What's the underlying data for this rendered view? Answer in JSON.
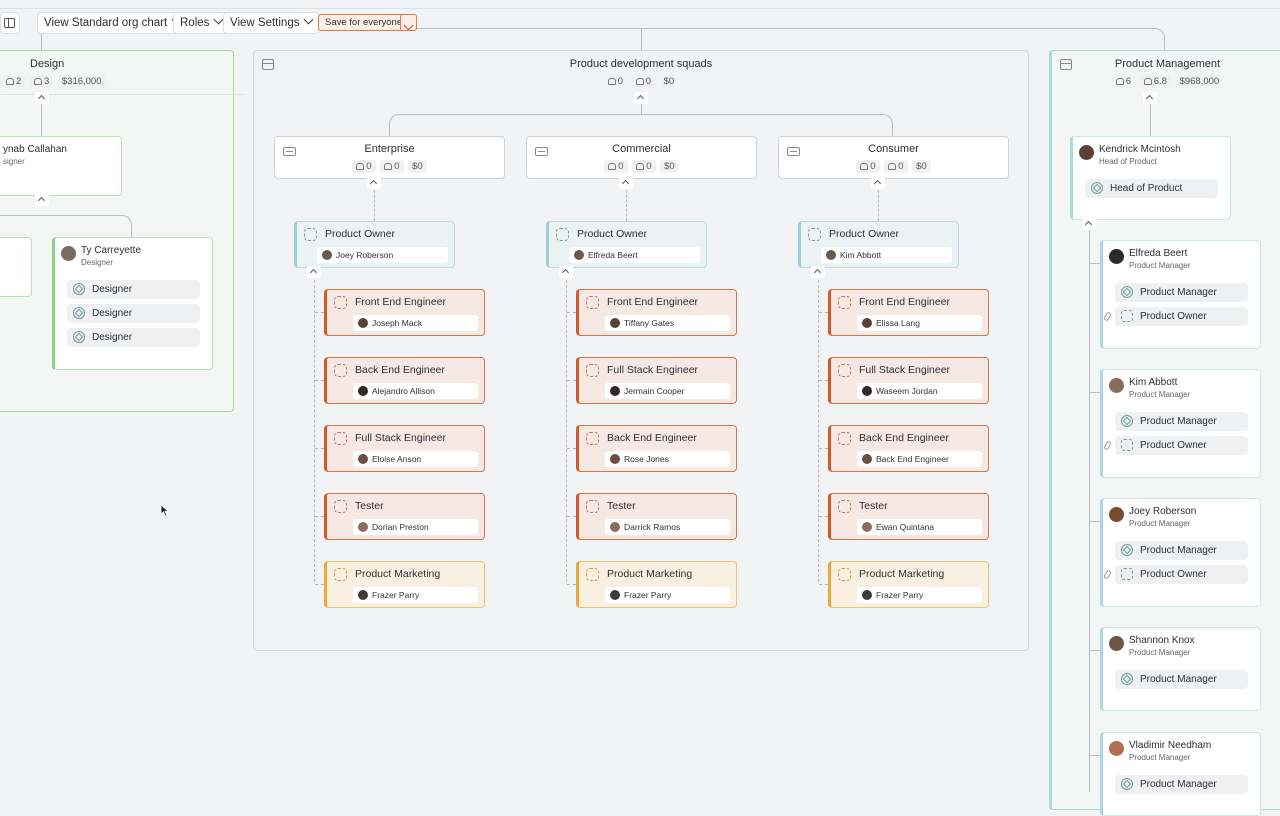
{
  "toolbar": {
    "view_label": "View Standard org chart",
    "roles_label": "Roles",
    "settings_label": "View Settings",
    "save_label": "Save for everyone"
  },
  "design": {
    "title": "Design",
    "people": "2",
    "roles": "3",
    "cost": "$316,000",
    "lead_name": "ynab Callahan",
    "lead_sub": "signer",
    "member": {
      "name": "Ty Carreyette",
      "sub": "Designer",
      "chips": [
        "Designer",
        "Designer",
        "Designer"
      ]
    }
  },
  "squads": {
    "title": "Product development squads",
    "people": "0",
    "roles": "0",
    "cost": "$0",
    "teams": [
      {
        "title": "Enterprise",
        "people": "0",
        "roles": "0",
        "cost": "$0",
        "owner": {
          "title": "Product Owner",
          "person": "Joey Roberson"
        },
        "roles_list": [
          {
            "title": "Front End Engineer",
            "person": "Joseph Mack",
            "color": "red"
          },
          {
            "title": "Back End Engineer",
            "person": "Alejandro Allison",
            "color": "red"
          },
          {
            "title": "Full Stack Engineer",
            "person": "Eloise Anson",
            "color": "red"
          },
          {
            "title": "Tester",
            "person": "Dorian Preston",
            "color": "red"
          },
          {
            "title": "Product Marketing",
            "person": "Frazer Parry",
            "color": "yellow"
          }
        ]
      },
      {
        "title": "Commercial",
        "people": "0",
        "roles": "0",
        "cost": "$0",
        "owner": {
          "title": "Product Owner",
          "person": "Elfreda Beert"
        },
        "roles_list": [
          {
            "title": "Front End Engineer",
            "person": "Tiffany Gates",
            "color": "red"
          },
          {
            "title": "Full Stack Engineer",
            "person": "Jermain Cooper",
            "color": "red"
          },
          {
            "title": "Back End Engineer",
            "person": "Rose Jones",
            "color": "red"
          },
          {
            "title": "Tester",
            "person": "Darrick Ramos",
            "color": "red"
          },
          {
            "title": "Product Marketing",
            "person": "Frazer Parry",
            "color": "yellow"
          }
        ]
      },
      {
        "title": "Consumer",
        "people": "0",
        "roles": "0",
        "cost": "$0",
        "owner": {
          "title": "Product Owner",
          "person": "Kim Abbott"
        },
        "roles_list": [
          {
            "title": "Front End Engineer",
            "person": "Elissa Lang",
            "color": "red"
          },
          {
            "title": "Full Stack Engineer",
            "person": "Waseem Jordan",
            "color": "red"
          },
          {
            "title": "Back End Engineer",
            "person": "Back End Engineer",
            "color": "red"
          },
          {
            "title": "Tester",
            "person": "Ewan Quintana",
            "color": "red"
          },
          {
            "title": "Product Marketing",
            "person": "Frazer Parry",
            "color": "yellow"
          }
        ]
      }
    ]
  },
  "pm": {
    "title": "Product Management",
    "people": "6",
    "roles": "6.8",
    "cost": "$968,000",
    "head": {
      "name": "Kendrick Mcintosh",
      "sub": "Head of Product",
      "chip": "Head of Product"
    },
    "members": [
      {
        "name": "Elfreda Beert",
        "sub": "Product Manager",
        "chips": [
          "Product Manager",
          "Product Owner"
        ]
      },
      {
        "name": "Kim Abbott",
        "sub": "Product Manager",
        "chips": [
          "Product Manager",
          "Product Owner"
        ]
      },
      {
        "name": "Joey Roberson",
        "sub": "Product Manager",
        "chips": [
          "Product Manager",
          "Product Owner"
        ]
      },
      {
        "name": "Shannon Knox",
        "sub": "Product Manager",
        "chips": [
          "Product Manager"
        ]
      },
      {
        "name": "Vladimir Needham",
        "sub": "Product Manager",
        "chips": [
          "Product Manager"
        ]
      }
    ]
  },
  "colors": {
    "role_red": "#d05a2c",
    "role_yellow": "#e8aa3a",
    "accent_teal": "#a9dcd6",
    "accent_green": "#8fd08a"
  }
}
